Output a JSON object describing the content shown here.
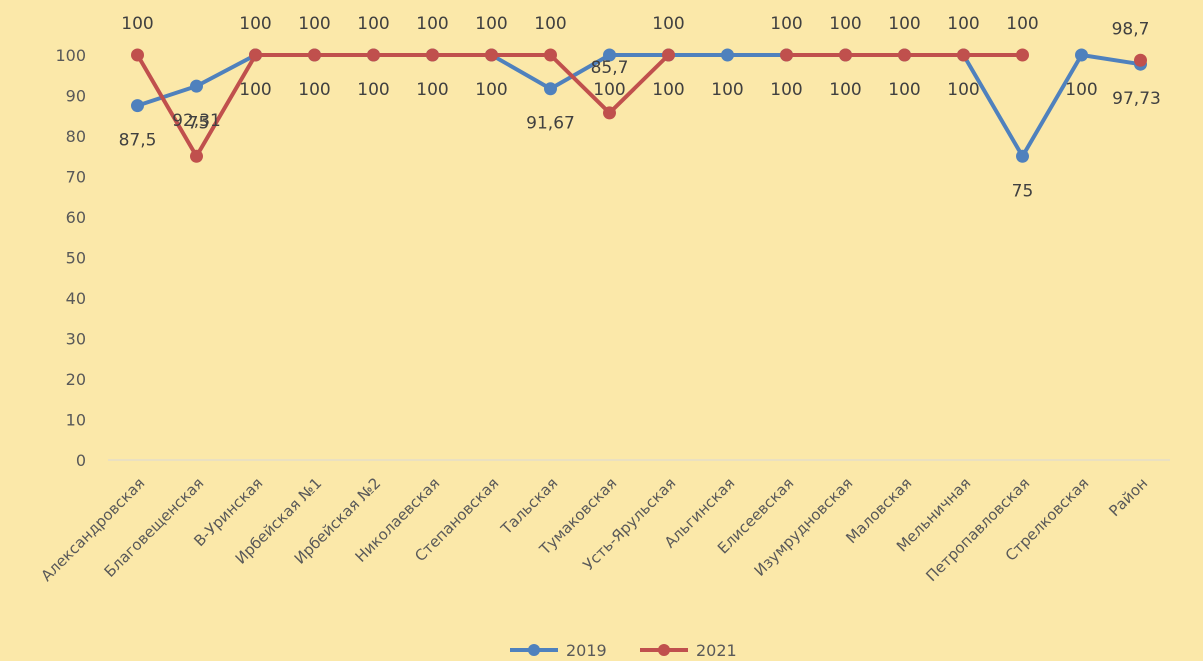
{
  "chart_data": {
    "type": "line",
    "categories": [
      "Александровская",
      "Благовещенская",
      "В-Уринская",
      "Ирбейская №1",
      "Ирбейская №2",
      "Николаевская",
      "Степановская",
      "Тальская",
      "Тумаковская",
      "Усть-Ярульская",
      "Альгинская",
      "Елисеевская",
      "Изумрудновская",
      "Маловская",
      "Мельничная",
      "Петропавловская",
      "Стрелковская",
      "Район"
    ],
    "series": [
      {
        "name": "2019",
        "color": "#4f81bd",
        "values": [
          87.5,
          92.31,
          100,
          100,
          100,
          100,
          100,
          91.67,
          100,
          100,
          100,
          100,
          100,
          100,
          100,
          75,
          100,
          97.73
        ],
        "labels": [
          "87,5",
          "92,31",
          "100",
          "100",
          "100",
          "100",
          "100",
          "91,67",
          "100",
          "100",
          "100",
          "100",
          "100",
          "100",
          "100",
          "75",
          "100",
          "97,73"
        ]
      },
      {
        "name": "2021",
        "color": "#c0504d",
        "values": [
          100,
          75,
          100,
          100,
          100,
          100,
          100,
          100,
          85.7,
          100,
          null,
          100,
          100,
          100,
          100,
          100,
          null,
          98.7
        ],
        "labels": [
          "100",
          "75",
          "100",
          "100",
          "100",
          "100",
          "100",
          "100",
          "85,7",
          "100",
          null,
          "100",
          "100",
          "100",
          "100",
          "100",
          null,
          "98,7"
        ]
      }
    ],
    "yticks": [
      "0",
      "10",
      "20",
      "30",
      "40",
      "50",
      "60",
      "70",
      "80",
      "90",
      "100"
    ],
    "ylim": [
      0,
      100
    ],
    "grid": false,
    "legend_position": "bottom",
    "title": "",
    "xlabel": "",
    "ylabel": ""
  }
}
